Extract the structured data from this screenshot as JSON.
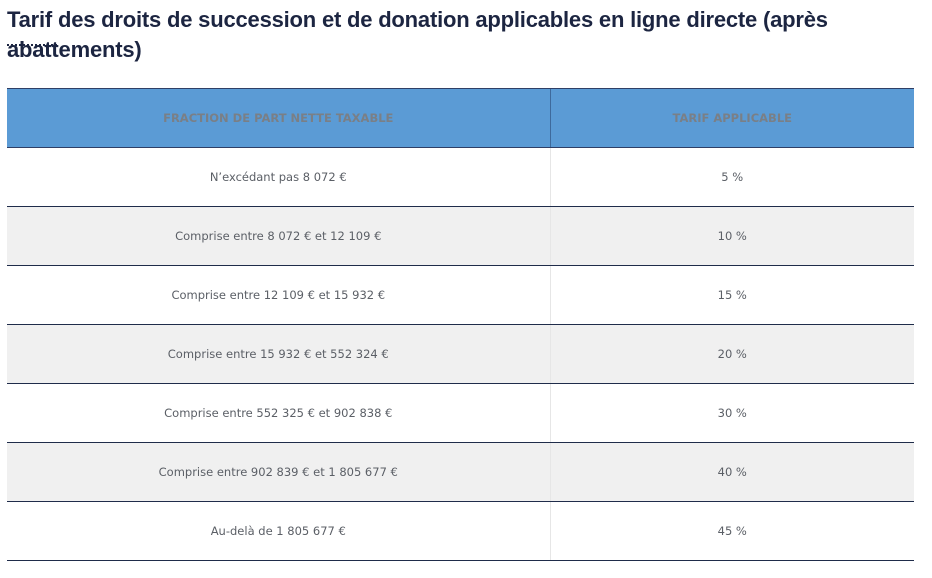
{
  "title": "Tarif des droits de succession et de donation applicables en ligne directe (après abattements)",
  "table": {
    "headers": [
      "FRACTION DE PART NETTE TAXABLE",
      "TARIF APPLICABLE"
    ],
    "rows": [
      {
        "fraction": "N’excédant pas 8 072 €",
        "tarif": "5 %"
      },
      {
        "fraction": "Comprise entre 8 072 € et 12 109 €",
        "tarif": "10 %"
      },
      {
        "fraction": "Comprise entre 12 109 € et 15 932 €",
        "tarif": "15 %"
      },
      {
        "fraction": "Comprise entre 15 932 € et 552 324 €",
        "tarif": "20 %"
      },
      {
        "fraction": "Comprise entre 552 325 € et 902 838 €",
        "tarif": "30 %"
      },
      {
        "fraction": "Comprise entre 902 839 € et 1 805 677 €",
        "tarif": "40 %"
      },
      {
        "fraction": "Au-delà de 1 805 677 €",
        "tarif": "45 %"
      }
    ]
  },
  "colors": {
    "header_background": "#5b9bd5",
    "title_color": "#1c2541",
    "row_stripe": "#f0f0f0",
    "row_border": "#1f2c4a"
  }
}
